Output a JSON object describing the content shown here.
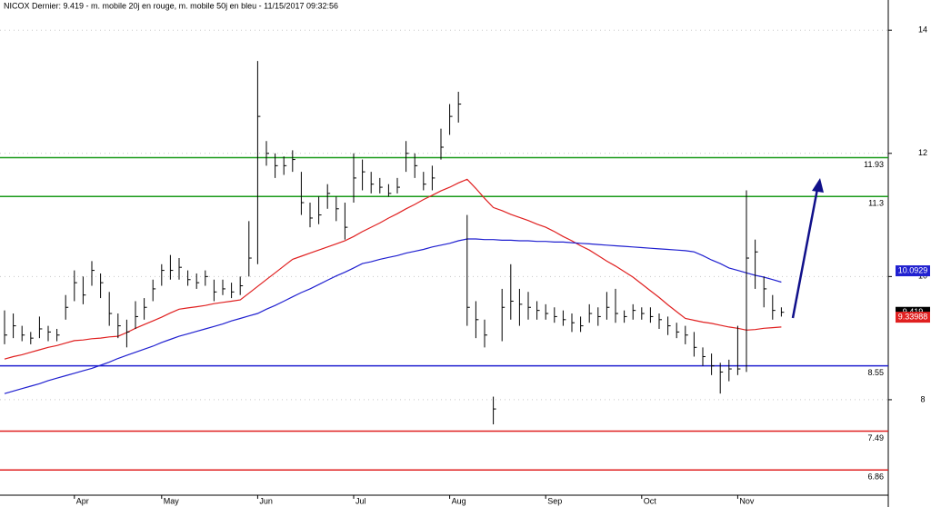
{
  "chart_data": {
    "type": "ohlc",
    "title": "NICOX Dernier: 9.419 - m. mobile 20j en rouge, m. mobile 50j en bleu - 11/15/2017 09:32:56",
    "categories": [
      null,
      null,
      null,
      null,
      null,
      null,
      null,
      null,
      "Apr",
      null,
      null,
      null,
      null,
      null,
      null,
      null,
      null,
      null,
      "May",
      null,
      null,
      null,
      null,
      null,
      null,
      null,
      null,
      null,
      null,
      "Jun",
      null,
      null,
      null,
      null,
      null,
      null,
      null,
      null,
      null,
      null,
      "Jul",
      null,
      null,
      null,
      null,
      null,
      null,
      null,
      null,
      null,
      null,
      "Aug",
      null,
      null,
      null,
      null,
      null,
      null,
      null,
      null,
      null,
      null,
      "Sep",
      null,
      null,
      null,
      null,
      null,
      null,
      null,
      null,
      null,
      null,
      "Oct",
      null,
      null,
      null,
      null,
      null,
      null,
      null,
      null,
      null,
      null,
      "Nov",
      null,
      null,
      null,
      null,
      null
    ],
    "bars": {
      "color": "#000000",
      "high": [
        9.45,
        9.4,
        9.2,
        9.1,
        9.35,
        9.2,
        9.15,
        9.7,
        10.1,
        10.0,
        10.25,
        10.05,
        9.75,
        9.4,
        9.3,
        9.6,
        9.65,
        9.95,
        10.2,
        10.35,
        10.3,
        10.1,
        10.05,
        10.1,
        9.95,
        9.95,
        9.9,
        10.0,
        10.9,
        13.5,
        12.2,
        12.0,
        11.95,
        12.05,
        11.7,
        11.2,
        11.3,
        11.5,
        11.3,
        11.2,
        12.0,
        11.9,
        11.7,
        11.6,
        11.5,
        11.6,
        12.2,
        12.0,
        11.7,
        11.8,
        12.4,
        12.8,
        13.0,
        11.0,
        9.6,
        9.3,
        8.05,
        9.8,
        10.2,
        9.8,
        9.75,
        9.6,
        9.55,
        9.5,
        9.45,
        9.4,
        9.35,
        9.55,
        9.5,
        9.75,
        9.8,
        9.45,
        9.55,
        9.5,
        9.5,
        9.4,
        9.35,
        9.25,
        9.2,
        9.1,
        8.85,
        8.75,
        8.6,
        8.65,
        9.2,
        11.4,
        10.6,
        10.0,
        9.7,
        9.5
      ],
      "low": [
        8.9,
        9.0,
        8.95,
        8.9,
        9.0,
        8.95,
        8.95,
        9.3,
        9.6,
        9.55,
        9.85,
        9.65,
        9.2,
        9.0,
        8.85,
        9.15,
        9.3,
        9.6,
        9.85,
        9.95,
        9.95,
        9.85,
        9.8,
        9.85,
        9.6,
        9.7,
        9.65,
        9.7,
        10.0,
        10.2,
        11.8,
        11.6,
        11.65,
        11.7,
        11.0,
        10.8,
        10.85,
        11.1,
        10.9,
        10.6,
        11.2,
        11.4,
        11.35,
        11.35,
        11.3,
        11.35,
        11.7,
        11.6,
        11.4,
        11.4,
        11.9,
        12.3,
        12.5,
        9.2,
        9.0,
        8.85,
        7.6,
        8.95,
        9.3,
        9.2,
        9.3,
        9.3,
        9.3,
        9.25,
        9.2,
        9.1,
        9.1,
        9.25,
        9.2,
        9.3,
        9.25,
        9.25,
        9.3,
        9.3,
        9.25,
        9.15,
        9.05,
        9.0,
        8.9,
        8.7,
        8.55,
        8.4,
        8.1,
        8.3,
        8.4,
        8.45,
        9.8,
        9.5,
        9.3,
        9.35
      ],
      "close": [
        9.05,
        9.2,
        9.05,
        9.0,
        9.15,
        9.1,
        9.05,
        9.5,
        9.9,
        9.7,
        10.1,
        9.9,
        9.4,
        9.2,
        9.1,
        9.35,
        9.5,
        9.8,
        10.1,
        10.1,
        10.15,
        9.95,
        9.9,
        10.0,
        9.75,
        9.8,
        9.75,
        9.85,
        10.3,
        12.6,
        12.0,
        11.8,
        11.8,
        11.9,
        11.2,
        10.95,
        11.0,
        11.35,
        11.1,
        10.8,
        11.6,
        11.7,
        11.5,
        11.45,
        11.35,
        11.45,
        12.0,
        11.8,
        11.5,
        11.6,
        12.1,
        12.6,
        12.8,
        9.5,
        9.3,
        9.05,
        7.85,
        9.5,
        9.6,
        9.55,
        9.5,
        9.45,
        9.4,
        9.35,
        9.3,
        9.25,
        9.2,
        9.4,
        9.35,
        9.5,
        9.4,
        9.35,
        9.45,
        9.4,
        9.35,
        9.3,
        9.2,
        9.1,
        9.05,
        8.85,
        8.7,
        8.55,
        8.45,
        8.5,
        8.5,
        10.3,
        10.4,
        9.8,
        9.45,
        9.42
      ]
    },
    "lines": [
      {
        "color": "#e02020",
        "values": [
          8.66,
          8.7,
          8.73,
          8.77,
          8.81,
          8.85,
          8.88,
          8.92,
          8.96,
          8.97,
          8.99,
          9.0,
          9.02,
          9.03,
          9.09,
          9.16,
          9.22,
          9.28,
          9.34,
          9.41,
          9.47,
          9.49,
          9.51,
          9.53,
          9.56,
          9.58,
          9.6,
          9.62,
          9.73,
          9.84,
          9.95,
          10.06,
          10.17,
          10.28,
          10.33,
          10.38,
          10.43,
          10.48,
          10.53,
          10.58,
          10.65,
          10.73,
          10.8,
          10.87,
          10.95,
          11.02,
          11.1,
          11.17,
          11.25,
          11.32,
          11.39,
          11.45,
          11.52,
          11.58,
          11.43,
          11.27,
          11.12,
          11.07,
          11.01,
          10.96,
          10.91,
          10.85,
          10.8,
          10.73,
          10.65,
          10.58,
          10.5,
          10.43,
          10.34,
          10.25,
          10.17,
          10.08,
          9.99,
          9.88,
          9.77,
          9.66,
          9.54,
          9.43,
          9.32,
          9.29,
          9.26,
          9.24,
          9.21,
          9.18,
          9.16,
          9.13,
          9.14,
          9.16,
          9.17,
          9.18
        ]
      },
      {
        "color": "#2020d0",
        "values": [
          8.1,
          8.14,
          8.18,
          8.22,
          8.26,
          8.31,
          8.35,
          8.39,
          8.43,
          8.47,
          8.51,
          8.56,
          8.61,
          8.67,
          8.72,
          8.77,
          8.82,
          8.87,
          8.93,
          8.98,
          9.03,
          9.07,
          9.11,
          9.15,
          9.19,
          9.23,
          9.28,
          9.32,
          9.36,
          9.4,
          9.47,
          9.53,
          9.6,
          9.67,
          9.74,
          9.8,
          9.87,
          9.94,
          10.01,
          10.07,
          10.14,
          10.21,
          10.24,
          10.28,
          10.31,
          10.34,
          10.38,
          10.41,
          10.44,
          10.48,
          10.51,
          10.54,
          10.58,
          10.61,
          10.61,
          10.6,
          10.6,
          10.59,
          10.59,
          10.58,
          10.58,
          10.57,
          10.57,
          10.56,
          10.56,
          10.55,
          10.54,
          10.53,
          10.52,
          10.51,
          10.5,
          10.49,
          10.48,
          10.47,
          10.46,
          10.45,
          10.44,
          10.43,
          10.42,
          10.4,
          10.34,
          10.27,
          10.21,
          10.14,
          10.1,
          10.06,
          10.02,
          9.99,
          9.95,
          9.91
        ]
      }
    ],
    "levels": [
      {
        "value": 11.93,
        "color": "#1a9a1a"
      },
      {
        "value": 11.3,
        "color": "#1a9a1a"
      },
      {
        "value": 8.55,
        "color": "#2020d0"
      },
      {
        "value": 7.49,
        "color": "#e02020"
      },
      {
        "value": 6.86,
        "color": "#e02020"
      }
    ],
    "price_tags": [
      {
        "value": 10.0929,
        "color": "#2020d0"
      },
      {
        "value": 9.419,
        "color": "#000000"
      },
      {
        "value": 9.33988,
        "color": "#e02020"
      }
    ],
    "ylim": [
      6.45,
      14.49
    ],
    "yticks": [
      8,
      10,
      12,
      14
    ],
    "grid": true
  }
}
